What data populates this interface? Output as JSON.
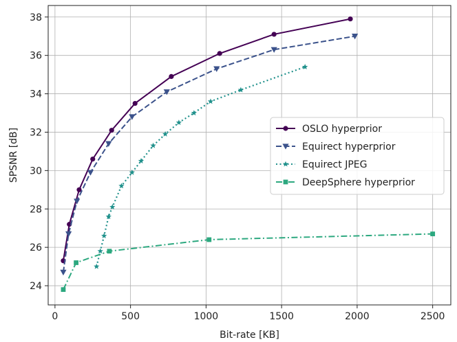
{
  "chart_data": {
    "type": "line",
    "xlabel": "Bit-rate [KB]",
    "ylabel": "SPSNR [dB]",
    "xlim": [
      -45,
      2620
    ],
    "ylim": [
      23.0,
      38.6
    ],
    "xticks": [
      0,
      500,
      1000,
      1500,
      2000,
      2500
    ],
    "yticks": [
      24,
      26,
      28,
      30,
      32,
      34,
      36,
      38
    ],
    "grid": true,
    "legend_position": "center-right",
    "series": [
      {
        "name": "OSLO hyperprior",
        "color": "#440154",
        "linestyle": "solid",
        "marker": "circle",
        "x": [
          55,
          95,
          160,
          250,
          375,
          530,
          770,
          1090,
          1450,
          1955
        ],
        "y": [
          25.3,
          27.2,
          29.0,
          30.6,
          32.1,
          33.5,
          34.9,
          36.1,
          37.1,
          37.9
        ]
      },
      {
        "name": "Equirect hyperprior",
        "color": "#3b528b",
        "linestyle": "dashed",
        "marker": "triangle-down",
        "x": [
          55,
          90,
          145,
          235,
          355,
          510,
          740,
          1070,
          1450,
          1985
        ],
        "y": [
          24.7,
          26.7,
          28.4,
          29.9,
          31.4,
          32.8,
          34.1,
          35.3,
          36.3,
          37.0
        ]
      },
      {
        "name": "Equirect JPEG",
        "color": "#21918c",
        "linestyle": "dotted",
        "marker": "star",
        "x": [
          275,
          300,
          325,
          355,
          380,
          440,
          510,
          570,
          650,
          730,
          820,
          920,
          1030,
          1230,
          1655
        ],
        "y": [
          25.0,
          25.8,
          26.6,
          27.6,
          28.1,
          29.2,
          29.9,
          30.5,
          31.3,
          31.9,
          32.5,
          33.0,
          33.6,
          34.2,
          35.4
        ]
      },
      {
        "name": "DeepSphere hyperprior",
        "color": "#2ca87f",
        "linestyle": "dashdot",
        "marker": "square",
        "x": [
          55,
          140,
          360,
          1020,
          2500
        ],
        "y": [
          23.8,
          25.2,
          25.8,
          26.4,
          26.7
        ]
      }
    ]
  }
}
